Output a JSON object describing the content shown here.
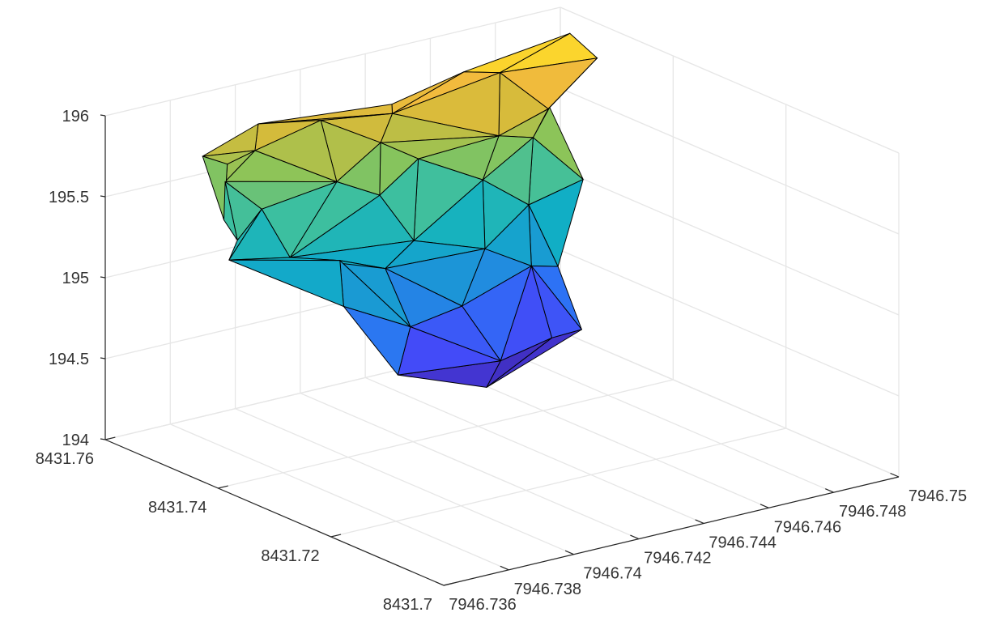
{
  "figure": {
    "background": "#ffffff"
  },
  "chart_data": {
    "type": "surface",
    "render": "triangulated 3-D surface (trisurf) with black mesh edges",
    "title": "",
    "xlabel": "",
    "ylabel": "",
    "zlabel": "",
    "grid": true,
    "legend": "none",
    "colormap": "parula",
    "colormap_stops": [
      "#3e26a8",
      "#4743f8",
      "#2d72f5",
      "#1c96d6",
      "#10b0c4",
      "#3cbfa0",
      "#8ac45a",
      "#d4bb3b",
      "#fcbb3d",
      "#f9fb15"
    ],
    "xlim": [
      7946.736,
      7946.75
    ],
    "ylim": [
      8431.7,
      8431.76
    ],
    "zlim": [
      194,
      196
    ],
    "x_ticks": [
      {
        "value": 7946.736,
        "label": "7946.736"
      },
      {
        "value": 7946.738,
        "label": "7946.738"
      },
      {
        "value": 7946.74,
        "label": "7946.74"
      },
      {
        "value": 7946.742,
        "label": "7946.742"
      },
      {
        "value": 7946.744,
        "label": "7946.744"
      },
      {
        "value": 7946.746,
        "label": "7946.746"
      },
      {
        "value": 7946.748,
        "label": "7946.748"
      },
      {
        "value": 7946.75,
        "label": "7946.75"
      }
    ],
    "y_ticks": [
      {
        "value": 8431.7,
        "label": "8431.7"
      },
      {
        "value": 8431.72,
        "label": "8431.72"
      },
      {
        "value": 8431.74,
        "label": "8431.74"
      },
      {
        "value": 8431.76,
        "label": "8431.76"
      }
    ],
    "z_ticks": [
      {
        "value": 194,
        "label": "194"
      },
      {
        "value": 194.5,
        "label": "194.5"
      },
      {
        "value": 195,
        "label": "195"
      },
      {
        "value": 195.5,
        "label": "195.5"
      },
      {
        "value": 196,
        "label": "196"
      }
    ],
    "vertices": [
      {
        "id": "A",
        "x": 7946.7383,
        "y": 8431.756,
        "z": 195.7
      },
      {
        "id": "B",
        "x": 7946.7388,
        "y": 8431.7545,
        "z": 195.65
      },
      {
        "id": "C",
        "x": 7946.7396,
        "y": 8431.7542,
        "z": 195.7
      },
      {
        "id": "D",
        "x": 7946.7397,
        "y": 8431.7542,
        "z": 195.86
      },
      {
        "id": "E",
        "x": 7946.7431,
        "y": 8431.7501,
        "z": 195.88
      },
      {
        "id": "F",
        "x": 7946.7432,
        "y": 8431.7506,
        "z": 195.81
      },
      {
        "id": "G",
        "x": 7946.7414,
        "y": 8431.7529,
        "z": 195.82
      },
      {
        "id": "H",
        "x": 7946.7449,
        "y": 8431.7477,
        "z": 196.03
      },
      {
        "id": "I",
        "x": 7946.7458,
        "y": 8431.7465,
        "z": 196.0
      },
      {
        "id": "J",
        "x": 7946.7475,
        "y": 8431.7439,
        "z": 196.2
      },
      {
        "id": "K",
        "x": 7946.7481,
        "y": 8431.7425,
        "z": 196.04
      },
      {
        "id": "L",
        "x": 7946.7468,
        "y": 8431.7437,
        "z": 195.77
      },
      {
        "id": "M",
        "x": 7946.7466,
        "y": 8431.7423,
        "z": 195.81
      },
      {
        "id": "N",
        "x": 7946.7473,
        "y": 8431.7404,
        "z": 195.36
      },
      {
        "id": "O",
        "x": 7946.7463,
        "y": 8431.7391,
        "z": 194.89
      },
      {
        "id": "P",
        "x": 7946.7467,
        "y": 8431.7372,
        "z": 194.51
      },
      {
        "id": "Q",
        "x": 7946.7458,
        "y": 8431.7373,
        "z": 194.5
      },
      {
        "id": "R",
        "x": 7946.7432,
        "y": 8431.7339,
        "z": 194.37
      },
      {
        "id": "S",
        "x": 7946.7403,
        "y": 8431.7329,
        "z": 194.6
      },
      {
        "id": "T",
        "x": 7946.7391,
        "y": 8431.7356,
        "z": 195.04
      },
      {
        "id": "U",
        "x": 7946.7398,
        "y": 8431.7403,
        "z": 195.22
      },
      {
        "id": "V",
        "x": 7946.7391,
        "y": 8431.7451,
        "z": 195.2
      },
      {
        "id": "W",
        "x": 7946.7384,
        "y": 8431.7504,
        "z": 195.26
      },
      {
        "id": "X",
        "x": 7946.7383,
        "y": 8431.7513,
        "z": 195.13
      },
      {
        "id": "Y",
        "x": 7946.7384,
        "y": 8431.7528,
        "z": 195.35
      },
      {
        "id": "Z",
        "x": 7946.7387,
        "y": 8431.7543,
        "z": 195.55
      },
      {
        "id": "AA",
        "x": 7946.7421,
        "y": 8431.7465,
        "z": 195.42
      },
      {
        "id": "AB",
        "x": 7946.7447,
        "y": 8431.7432,
        "z": 195.44
      },
      {
        "id": "AC",
        "x": 7946.7409,
        "y": 8431.7472,
        "z": 195.55
      },
      {
        "id": "AD",
        "x": 7946.7423,
        "y": 8431.7475,
        "z": 195.72
      },
      {
        "id": "AE",
        "x": 7946.7454,
        "y": 8431.7444,
        "z": 195.66
      },
      {
        "id": "AF",
        "x": 7946.7427,
        "y": 8431.7439,
        "z": 195.15
      },
      {
        "id": "AG",
        "x": 7946.7444,
        "y": 8431.7411,
        "z": 195.06
      },
      {
        "id": "AH",
        "x": 7946.7434,
        "y": 8431.7394,
        "z": 194.78
      },
      {
        "id": "AI",
        "x": 7946.7441,
        "y": 8431.7366,
        "z": 194.45
      },
      {
        "id": "AJ",
        "x": 7946.7463,
        "y": 8431.7435,
        "z": 195.62
      },
      {
        "id": "AK",
        "x": 7946.7392,
        "y": 8431.7507,
        "z": 195.41
      },
      {
        "id": "AL",
        "x": 7946.7432,
        "y": 8431.746,
        "z": 195.6
      },
      {
        "id": "AM",
        "x": 7946.7413,
        "y": 8431.7409,
        "z": 195.09
      },
      {
        "id": "AN",
        "x": 7946.7415,
        "y": 8431.7376,
        "z": 194.77
      },
      {
        "id": "AO",
        "x": 7946.7455,
        "y": 8431.7392,
        "z": 194.93
      },
      {
        "id": "AP",
        "x": 7946.7458,
        "y": 8431.7414,
        "z": 195.26
      }
    ],
    "triangles": [
      [
        "A",
        "B",
        "Y"
      ],
      [
        "A",
        "C",
        "B"
      ],
      [
        "A",
        "D",
        "C"
      ],
      [
        "C",
        "D",
        "G"
      ],
      [
        "D",
        "F",
        "G"
      ],
      [
        "D",
        "E",
        "F"
      ],
      [
        "E",
        "H",
        "F"
      ],
      [
        "H",
        "I",
        "F"
      ],
      [
        "H",
        "J",
        "I"
      ],
      [
        "J",
        "K",
        "I"
      ],
      [
        "I",
        "K",
        "L"
      ],
      [
        "K",
        "M",
        "L"
      ],
      [
        "I",
        "L",
        "AE"
      ],
      [
        "L",
        "AJ",
        "AE"
      ],
      [
        "L",
        "M",
        "AJ"
      ],
      [
        "M",
        "N",
        "AJ"
      ],
      [
        "F",
        "I",
        "AE"
      ],
      [
        "F",
        "AE",
        "AD"
      ],
      [
        "F",
        "AD",
        "G"
      ],
      [
        "G",
        "AD",
        "AC"
      ],
      [
        "G",
        "AC",
        "C"
      ],
      [
        "C",
        "AC",
        "Z"
      ],
      [
        "B",
        "C",
        "Z"
      ],
      [
        "B",
        "Z",
        "Y"
      ],
      [
        "Y",
        "Z",
        "W"
      ],
      [
        "Z",
        "AC",
        "AK"
      ],
      [
        "Z",
        "AK",
        "W"
      ],
      [
        "W",
        "AK",
        "X"
      ],
      [
        "X",
        "AK",
        "V"
      ],
      [
        "AK",
        "AC",
        "V"
      ],
      [
        "AC",
        "AA",
        "V"
      ],
      [
        "AC",
        "AD",
        "AA"
      ],
      [
        "AD",
        "AL",
        "AA"
      ],
      [
        "AD",
        "AE",
        "AL"
      ],
      [
        "AE",
        "AB",
        "AL"
      ],
      [
        "AE",
        "AJ",
        "AB"
      ],
      [
        "AJ",
        "AP",
        "AB"
      ],
      [
        "AJ",
        "N",
        "AP"
      ],
      [
        "N",
        "O",
        "AP"
      ],
      [
        "AP",
        "O",
        "AO"
      ],
      [
        "AB",
        "AP",
        "AG"
      ],
      [
        "AP",
        "AO",
        "AG"
      ],
      [
        "AL",
        "AB",
        "AF"
      ],
      [
        "AB",
        "AG",
        "AF"
      ],
      [
        "AA",
        "AL",
        "AF"
      ],
      [
        "V",
        "AA",
        "AF"
      ],
      [
        "V",
        "AF",
        "AM"
      ],
      [
        "AF",
        "AG",
        "AM"
      ],
      [
        "AG",
        "AH",
        "AM"
      ],
      [
        "AG",
        "AO",
        "AH"
      ],
      [
        "AO",
        "O",
        "P"
      ],
      [
        "AO",
        "P",
        "Q"
      ],
      [
        "AO",
        "Q",
        "AI"
      ],
      [
        "AH",
        "AO",
        "AI"
      ],
      [
        "AH",
        "AI",
        "AN"
      ],
      [
        "AM",
        "AH",
        "AN"
      ],
      [
        "U",
        "AM",
        "AN"
      ],
      [
        "V",
        "AM",
        "U"
      ],
      [
        "X",
        "V",
        "U"
      ],
      [
        "X",
        "U",
        "T"
      ],
      [
        "U",
        "AN",
        "T"
      ],
      [
        "T",
        "AN",
        "S"
      ],
      [
        "AN",
        "AI",
        "S"
      ],
      [
        "AI",
        "R",
        "S"
      ],
      [
        "AI",
        "Q",
        "R"
      ],
      [
        "Q",
        "P",
        "R"
      ]
    ]
  }
}
